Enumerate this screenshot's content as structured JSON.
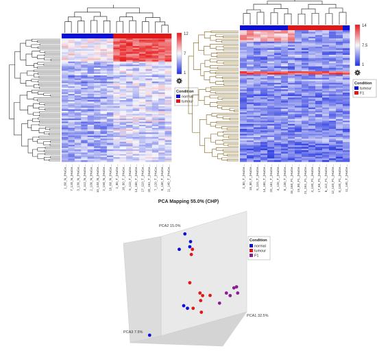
{
  "colors": {
    "normal": "#0a10d8",
    "tumour": "#e01818",
    "F1": "#8a1f90",
    "heat_low": "#1f2fe0",
    "heat_mid": "#f6f6fb",
    "heat_high": "#e81a1a",
    "dendro_left": "#222222",
    "dendro_right": "#7a5a10"
  },
  "chart_data": [
    {
      "type": "heatmap",
      "scale": {
        "max_label": "12",
        "mid_label": "7",
        "min_label": "1"
      },
      "legend": {
        "title": "Condition",
        "items": [
          {
            "label": "normal",
            "color": "#0a10d8"
          },
          {
            "label": "tumour",
            "color": "#e01818"
          }
        ]
      },
      "columns": [
        "1_80_N_(HuGe...",
        "7_120_N_(HuGe...",
        "3_130_N_(HuGe...",
        "4_112_N_(HuGe...",
        "2_100_N_(HuGe...",
        "10_140_N_(HuGe...",
        "2_150_N_(HuGe...",
        "16_60_N_(HuGe...",
        "2_80_T_(HuGe...",
        "16_60_T_(HuGe...",
        "5_110_T_(HuGe...",
        "14_160_T_(HuGe...",
        "17_110_T_(HuGe...",
        "20_161_T_(HuGe...",
        "7_120_T_(HuGe...",
        "8_130_T_(HuGe...",
        "11_140_T_(HuGe..."
      ],
      "column_groups": [
        "normal",
        "normal",
        "normal",
        "normal",
        "normal",
        "normal",
        "normal",
        "normal",
        "tumour",
        "tumour",
        "tumour",
        "tumour",
        "tumour",
        "tumour",
        "tumour",
        "tumour",
        "tumour"
      ]
    },
    {
      "type": "heatmap",
      "scale": {
        "max_label": "14",
        "mid_label": "7.5",
        "min_label": "1"
      },
      "legend": {
        "title": "Condition",
        "items": [
          {
            "label": "tumour",
            "color": "#0a10d8"
          },
          {
            "label": "F1",
            "color": "#e01818"
          }
        ]
      },
      "columns": [
        "2_80_T_(HuGe...",
        "18_80_T_(HuGe...",
        "5_110_T_(HuGe...",
        "14_160_T_(HuGe...",
        "20_161_T_(HuGe...",
        "4_120_T_(HuGe...",
        "8_130_T_(HuGe...",
        "15_160_F1_(HuGe...",
        "19_80_F1_(HuGe...",
        "21_161_F1_(HuGe...",
        "3_130_F1_(HuGe...",
        "17_65_F1_(HuGe...",
        "6_112_F1_(HuGe...",
        "12_140_F1_(HuGe...",
        "8_130_F1_(HuGe...",
        "11_140_T_(HuGe..."
      ],
      "column_groups": [
        "tumour",
        "tumour",
        "tumour",
        "tumour",
        "tumour",
        "tumour",
        "tumour",
        "F1",
        "F1",
        "F1",
        "F1",
        "F1",
        "F1",
        "F1",
        "F1",
        "tumour"
      ]
    },
    {
      "type": "scatter",
      "title": "PCA Mapping 55.0% (CHP)",
      "axes": {
        "x": "PCA1 32.5%",
        "y": "PCA2 15.0%",
        "z": "PCA3 7.5%"
      },
      "grid": false,
      "legend": {
        "title": "Condition",
        "placement": "right",
        "items": [
          {
            "label": "normal",
            "color": "#0a10d8"
          },
          {
            "label": "tumour",
            "color": "#e01818"
          },
          {
            "label": "F1",
            "color": "#8a1f90"
          }
        ]
      },
      "series": [
        {
          "name": "normal",
          "points": [
            {
              "x": -0.55,
              "y": 0.85,
              "z": 0.0
            },
            {
              "x": -0.4,
              "y": 0.7,
              "z": 0.0
            },
            {
              "x": -0.42,
              "y": 0.6,
              "z": 0.0
            },
            {
              "x": -0.7,
              "y": 0.55,
              "z": 0.0
            },
            {
              "x": -0.5,
              "y": -0.5,
              "z": 0.1
            },
            {
              "x": -0.4,
              "y": -0.55,
              "z": 0.1
            },
            {
              "x": -0.75,
              "y": -0.7,
              "z": 0.9
            }
          ]
        },
        {
          "name": "tumour",
          "points": [
            {
              "x": -0.35,
              "y": 0.55,
              "z": 0.0
            },
            {
              "x": -0.38,
              "y": 0.45,
              "z": 0.0
            },
            {
              "x": -0.42,
              "y": -0.1,
              "z": 0.0
            },
            {
              "x": -0.15,
              "y": -0.3,
              "z": 0.0
            },
            {
              "x": -0.08,
              "y": -0.35,
              "z": 0.0
            },
            {
              "x": -0.05,
              "y": -0.4,
              "z": 0.1
            },
            {
              "x": -0.25,
              "y": -0.55,
              "z": 0.1
            },
            {
              "x": 0.2,
              "y": -0.3,
              "z": 0.1
            },
            {
              "x": 0.05,
              "y": -0.58,
              "z": 0.2
            }
          ]
        },
        {
          "name": "F1",
          "points": [
            {
              "x": 0.55,
              "y": -0.3,
              "z": 0.0
            },
            {
              "x": 0.65,
              "y": -0.35,
              "z": 0.0
            },
            {
              "x": 0.75,
              "y": -0.2,
              "z": 0.0
            },
            {
              "x": 0.82,
              "y": -0.18,
              "z": 0.0
            },
            {
              "x": 0.85,
              "y": -0.3,
              "z": 0.0
            },
            {
              "x": 0.45,
              "y": -0.45,
              "z": 0.1
            }
          ]
        }
      ]
    }
  ]
}
